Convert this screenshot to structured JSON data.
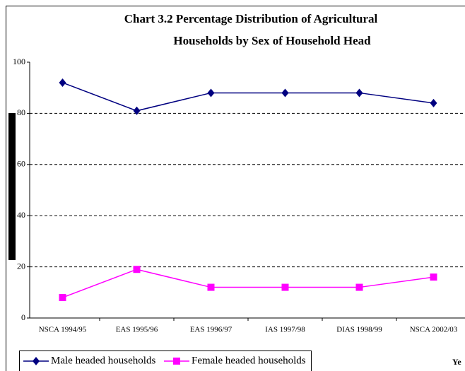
{
  "chart_data": {
    "type": "line",
    "title": [
      "Chart 3.2 Percentage Distribution of Agricultural",
      "Households by Sex of Household Head"
    ],
    "x_label": "Ye",
    "categories": [
      "NSCA 1994/95",
      "EAS 1995/96",
      "EAS 1996/97",
      "IAS 1997/98",
      "DIAS 1998/99",
      "NSCA 2002/03"
    ],
    "series": [
      {
        "name": "Male headed households",
        "color": "#000080",
        "marker": "diamond",
        "values": [
          92,
          81,
          88,
          88,
          88,
          84
        ]
      },
      {
        "name": "Female headed households",
        "color": "#ff00ff",
        "marker": "square",
        "values": [
          8,
          19,
          12,
          12,
          12,
          16
        ]
      }
    ],
    "ylim": [
      0,
      100
    ],
    "yticks": [
      0,
      20,
      40,
      60,
      80,
      100
    ],
    "grid": true,
    "legend": "bottom"
  }
}
